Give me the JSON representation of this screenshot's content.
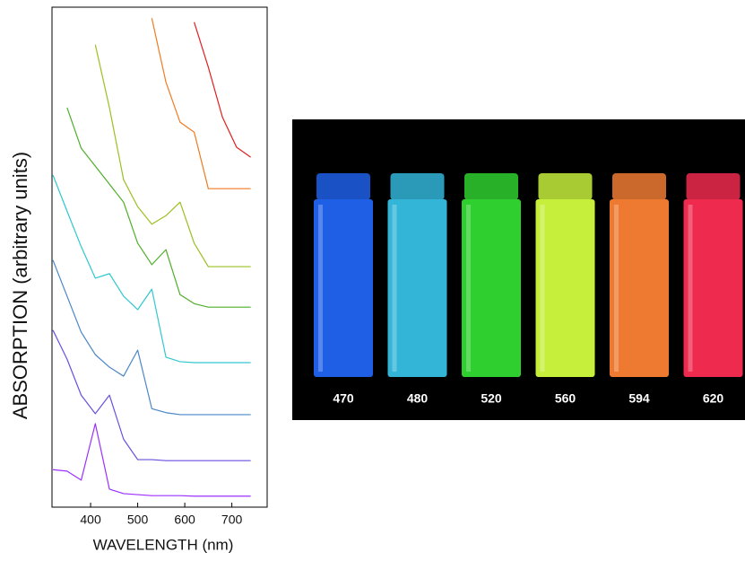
{
  "chart_data": {
    "type": "line",
    "xlabel": "WAVELENGTH (nm)",
    "ylabel": "ABSORPTION (arbitrary units)",
    "x": [
      320,
      350,
      380,
      410,
      440,
      470,
      500,
      530,
      560,
      590,
      620,
      650,
      680,
      710,
      740
    ],
    "xlim": [
      318,
      775
    ],
    "xticks": [
      400,
      500,
      600,
      700
    ],
    "ylim": [
      0,
      100
    ],
    "series": [
      {
        "color": "#9b30ff",
        "values": [
          7.5,
          7.2,
          5.4,
          16.7,
          3.6,
          2.7,
          2.5,
          2.3,
          2.3,
          2.3,
          2.2,
          2.2,
          2.2,
          2.2,
          2.2
        ]
      },
      {
        "color": "#6a4fe0",
        "values": [
          35.4,
          29.6,
          22.4,
          18.7,
          22.4,
          13.6,
          9.5,
          9.5,
          9.3,
          9.3,
          9.3,
          9.3,
          9.3,
          9.3,
          9.3
        ]
      },
      {
        "color": "#4a86c8",
        "values": [
          49.4,
          42.2,
          35.0,
          30.5,
          28.0,
          26.2,
          31.4,
          19.7,
          18.9,
          18.5,
          18.5,
          18.5,
          18.5,
          18.5,
          18.5
        ]
      },
      {
        "color": "#30c8d0",
        "values": [
          66.4,
          59.2,
          52.1,
          45.8,
          46.7,
          42.2,
          39.5,
          43.6,
          30.0,
          29.1,
          28.9,
          28.9,
          28.9,
          28.9,
          28.9
        ]
      },
      {
        "color": "#4fae2a",
        "values": [
          null,
          79.9,
          71.8,
          68.2,
          64.6,
          61.0,
          52.8,
          48.5,
          51.5,
          42.5,
          40.7,
          40.0,
          40.0,
          40.0,
          40.0
        ]
      },
      {
        "color": "#9bbf20",
        "values": [
          null,
          null,
          null,
          92.5,
          79.9,
          65.5,
          60.1,
          56.6,
          58.3,
          61.0,
          52.8,
          48.1,
          48.1,
          48.1,
          48.1
        ]
      },
      {
        "color": "#f07a20",
        "values": [
          null,
          null,
          null,
          null,
          null,
          null,
          null,
          97.8,
          85.0,
          77.0,
          75.0,
          63.7,
          63.7,
          63.7,
          63.7
        ]
      },
      {
        "color": "#e02020",
        "values": [
          null,
          null,
          null,
          null,
          null,
          null,
          null,
          null,
          null,
          null,
          97.0,
          88.0,
          78.0,
          72.0,
          70.0
        ]
      }
    ]
  },
  "photo": {
    "labels": [
      470,
      480,
      520,
      560,
      594,
      620
    ],
    "colors": [
      "#1f5fe6",
      "#33b5d8",
      "#2fcf2f",
      "#c6ef3c",
      "#ee7a32",
      "#ee2a4e"
    ]
  }
}
